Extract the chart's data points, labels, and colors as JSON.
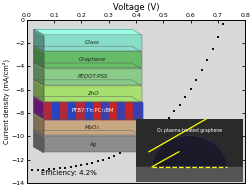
{
  "title": "Voltage (V)",
  "ylabel": "Current density (mA/cm²)",
  "xlim": [
    0.0,
    0.8
  ],
  "ylim": [
    -14,
    0
  ],
  "xticks": [
    0.0,
    0.1,
    0.2,
    0.3,
    0.4,
    0.5,
    0.6,
    0.7,
    0.8
  ],
  "yticks": [
    0,
    -2,
    -4,
    -6,
    -8,
    -10,
    -12,
    -14
  ],
  "efficiency_text": "Efficiency: 4.2%",
  "inset_photo_label": "O₂ plasma-treated graphene",
  "curve_color": "#111111",
  "bg_color": "#ffffff",
  "plot_bg": "#d8d8d8",
  "jv_voltage": [
    0.0,
    0.02,
    0.04,
    0.06,
    0.08,
    0.1,
    0.12,
    0.14,
    0.16,
    0.18,
    0.2,
    0.22,
    0.24,
    0.26,
    0.28,
    0.3,
    0.32,
    0.34,
    0.36,
    0.38,
    0.4,
    0.42,
    0.44,
    0.46,
    0.48,
    0.5,
    0.52,
    0.54,
    0.56,
    0.58,
    0.6,
    0.62,
    0.64,
    0.66,
    0.68,
    0.7,
    0.72,
    0.74,
    0.76
  ],
  "jv_current": [
    -12.9,
    -12.88,
    -12.86,
    -12.84,
    -12.82,
    -12.78,
    -12.74,
    -12.68,
    -12.61,
    -12.54,
    -12.45,
    -12.35,
    -12.24,
    -12.12,
    -11.98,
    -11.82,
    -11.64,
    -11.44,
    -11.22,
    -10.97,
    -10.7,
    -10.4,
    -10.07,
    -9.71,
    -9.31,
    -8.87,
    -8.39,
    -7.85,
    -7.27,
    -6.63,
    -5.93,
    -5.17,
    -4.35,
    -3.47,
    -2.52,
    -1.5,
    -0.4,
    0.78,
    2.05
  ],
  "layers": [
    {
      "label": "Ag",
      "color": "#8c8c8c",
      "text_color": "#222222"
    },
    {
      "label": "MoO₃",
      "color": "#c8a882",
      "text_color": "#222222"
    },
    {
      "label": "PTB7:Th:PC₇₁BM",
      "color": "#9922aa",
      "text_color": "#ffffff",
      "mixed": true
    },
    {
      "label": "ZnO",
      "color": "#a8e070",
      "text_color": "#222222"
    },
    {
      "label": "PEDOT:PSS",
      "color": "#88cc88",
      "text_color": "#222222"
    },
    {
      "label": "Graphene",
      "color": "#66bb66",
      "text_color": "#222222"
    },
    {
      "label": "Glass",
      "color": "#88ddc8",
      "text_color": "#222222"
    }
  ]
}
